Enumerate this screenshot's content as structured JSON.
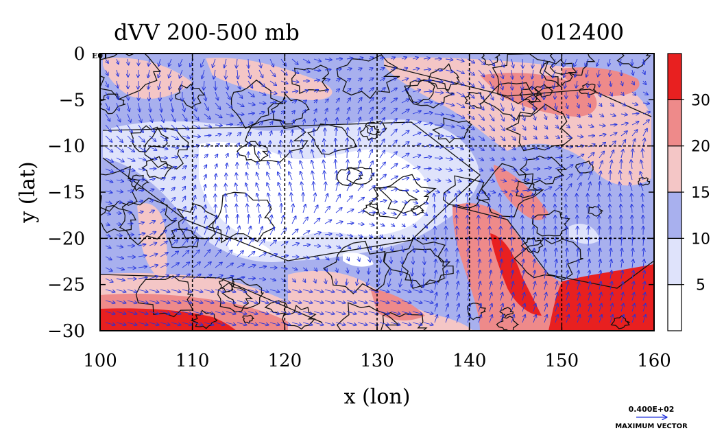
{
  "chart_data": {
    "type": "contour-map",
    "title": "dVV 200-500 mb",
    "time_label": "012400",
    "xlabel": "x (lon)",
    "ylabel": "y (lat)",
    "xlim": [
      100,
      160
    ],
    "ylim": [
      -30,
      0
    ],
    "x_ticks": [
      100,
      110,
      120,
      130,
      140,
      150,
      160
    ],
    "y_ticks": [
      0,
      -5,
      -10,
      -15,
      -20,
      -25,
      -30
    ],
    "y_tick_labels": [
      "0",
      "−5",
      "−10",
      "−15",
      "−20",
      "−25",
      "−30"
    ],
    "grid_lines_x": [
      110,
      120,
      130,
      140,
      150
    ],
    "grid_lines_y": [
      -10,
      -20
    ],
    "colorbar": {
      "levels": [
        0,
        5,
        10,
        15,
        20,
        30,
        40
      ],
      "labels": [
        "5",
        "10",
        "15",
        "20",
        "30"
      ],
      "colors": [
        "#ffffff",
        "#dfe3fb",
        "#a8b0ee",
        "#f4c6c6",
        "#ee8a8a",
        "#e82020"
      ]
    },
    "vector_reference": {
      "value": "0.400E+02",
      "label": "MAXIMUM VECTOR"
    },
    "corner_mark": "E01"
  }
}
